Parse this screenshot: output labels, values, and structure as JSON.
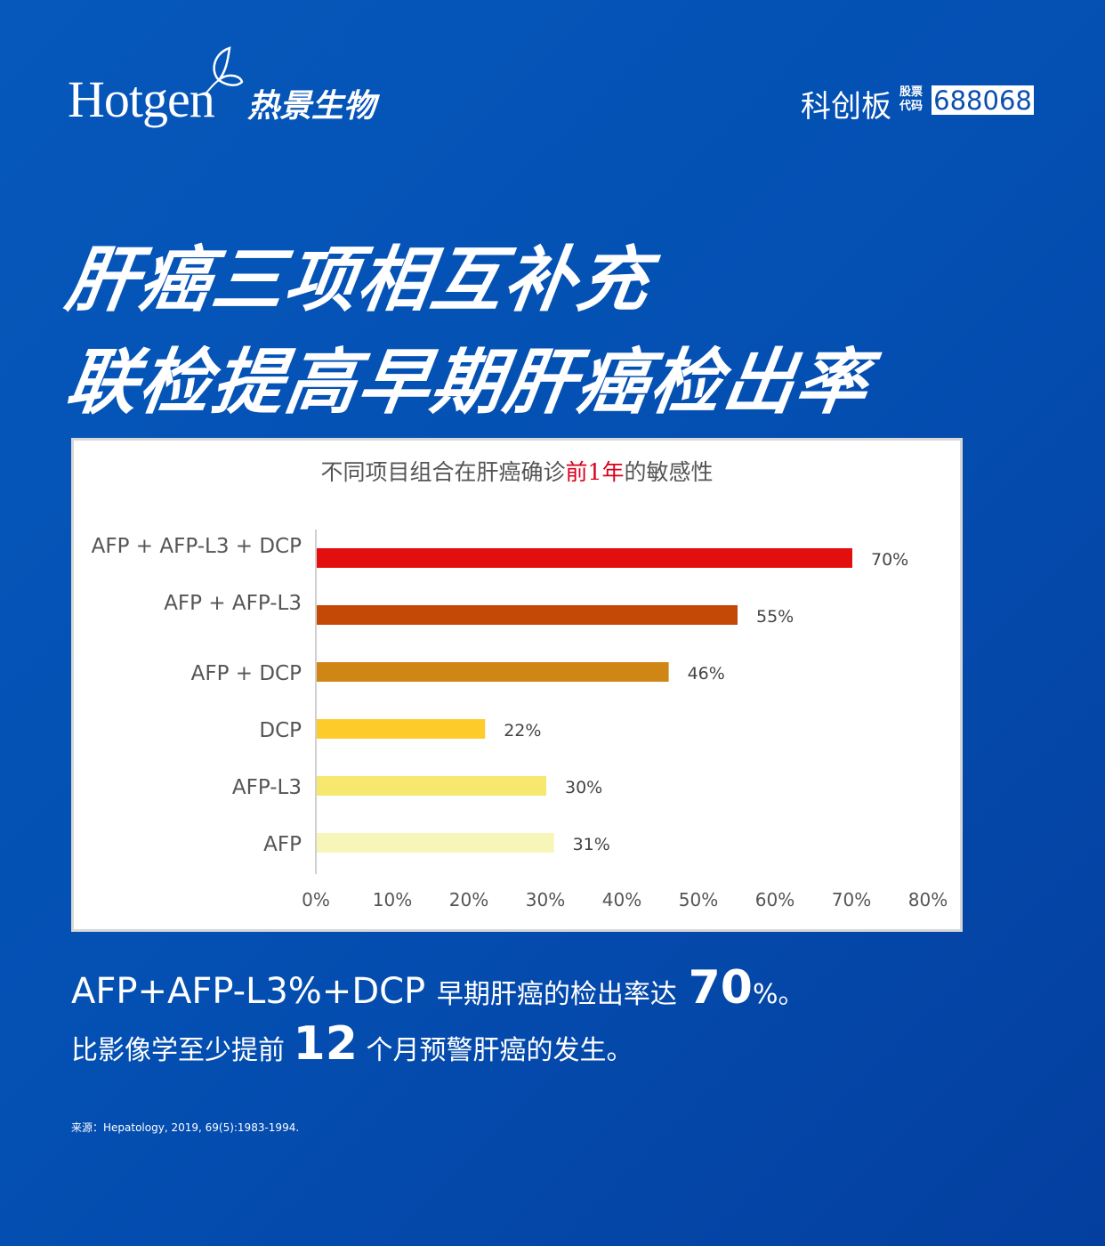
{
  "header": {
    "logo_en": "Hotgen",
    "logo_cn": "热景生物",
    "board": "科创板",
    "stock_label_1": "股票",
    "stock_label_2": "代码",
    "stock_code": "688068"
  },
  "headline": {
    "line1": "肝癌三项相互补充",
    "line2": "联检提高早期肝癌检出率"
  },
  "chart_data": {
    "type": "bar",
    "orientation": "horizontal",
    "title_pre": "不同项目组合在肝癌确诊",
    "title_highlight": "前1年",
    "title_post": "的敏感性",
    "categories": [
      "AFP + AFP-L3 + DCP",
      "AFP + AFP-L3",
      "AFP + DCP",
      "DCP",
      "AFP-L3",
      "AFP"
    ],
    "values": [
      70,
      55,
      46,
      22,
      30,
      31
    ],
    "data_labels": [
      "70%",
      "55%",
      "46%",
      "22%",
      "30%",
      "31%"
    ],
    "colors": [
      "#e30f0f",
      "#c44906",
      "#d08614",
      "#fdcb2a",
      "#f6e86f",
      "#f8f5b8"
    ],
    "xlim": [
      0,
      80
    ],
    "xticks": [
      "0%",
      "10%",
      "20%",
      "30%",
      "40%",
      "50%",
      "60%",
      "70%",
      "80%"
    ],
    "grid": false,
    "legend": "none"
  },
  "footer": {
    "line1_a": "AFP+AFP-L3%+DCP",
    "line1_b": "早期肝癌的检出率达",
    "line1_num": "70",
    "line1_c": "%。",
    "line2_a": "比影像学至少提前",
    "line2_num": "12",
    "line2_b": "个月预警肝癌的发生。",
    "source": "来源：Hepatology, 2019, 69(5):1983-1994."
  }
}
